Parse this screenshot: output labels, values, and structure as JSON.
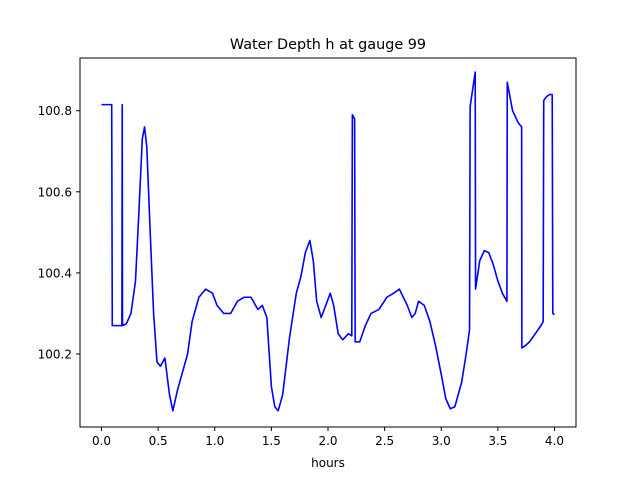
{
  "chart_data": {
    "type": "line",
    "title": "Water Depth h at gauge 99",
    "xlabel": "hours",
    "ylabel": "",
    "xlim": [
      -0.19,
      4.19
    ],
    "ylim": [
      100.02,
      100.93
    ],
    "x_ticks": [
      0.0,
      0.5,
      1.0,
      1.5,
      2.0,
      2.5,
      3.0,
      3.5,
      4.0
    ],
    "x_tick_labels": [
      "0.0",
      "0.5",
      "1.0",
      "1.5",
      "2.0",
      "2.5",
      "3.0",
      "3.5",
      "4.0"
    ],
    "y_ticks": [
      100.2,
      100.4,
      100.6,
      100.8
    ],
    "y_tick_labels": [
      "100.2",
      "100.4",
      "100.6",
      "100.8"
    ],
    "grid": false,
    "series": [
      {
        "color": "#0000ff",
        "points": [
          [
            0.0,
            100.815
          ],
          [
            0.09,
            100.815
          ],
          [
            0.095,
            100.27
          ],
          [
            0.18,
            100.27
          ],
          [
            0.183,
            100.815
          ],
          [
            0.185,
            100.27
          ],
          [
            0.22,
            100.275
          ],
          [
            0.26,
            100.3
          ],
          [
            0.3,
            100.38
          ],
          [
            0.33,
            100.55
          ],
          [
            0.36,
            100.73
          ],
          [
            0.38,
            100.76
          ],
          [
            0.4,
            100.71
          ],
          [
            0.43,
            100.5
          ],
          [
            0.46,
            100.3
          ],
          [
            0.49,
            100.18
          ],
          [
            0.52,
            100.17
          ],
          [
            0.56,
            100.19
          ],
          [
            0.6,
            100.1
          ],
          [
            0.63,
            100.06
          ],
          [
            0.67,
            100.11
          ],
          [
            0.72,
            100.16
          ],
          [
            0.76,
            100.2
          ],
          [
            0.8,
            100.28
          ],
          [
            0.86,
            100.34
          ],
          [
            0.92,
            100.36
          ],
          [
            0.98,
            100.35
          ],
          [
            1.02,
            100.32
          ],
          [
            1.08,
            100.3
          ],
          [
            1.14,
            100.3
          ],
          [
            1.2,
            100.33
          ],
          [
            1.26,
            100.34
          ],
          [
            1.32,
            100.34
          ],
          [
            1.38,
            100.31
          ],
          [
            1.42,
            100.32
          ],
          [
            1.46,
            100.29
          ],
          [
            1.5,
            100.12
          ],
          [
            1.53,
            100.07
          ],
          [
            1.56,
            100.06
          ],
          [
            1.6,
            100.1
          ],
          [
            1.66,
            100.24
          ],
          [
            1.72,
            100.35
          ],
          [
            1.76,
            100.39
          ],
          [
            1.8,
            100.45
          ],
          [
            1.84,
            100.48
          ],
          [
            1.87,
            100.43
          ],
          [
            1.9,
            100.33
          ],
          [
            1.94,
            100.29
          ],
          [
            1.98,
            100.32
          ],
          [
            2.02,
            100.35
          ],
          [
            2.05,
            100.32
          ],
          [
            2.09,
            100.25
          ],
          [
            2.13,
            100.235
          ],
          [
            2.18,
            100.25
          ],
          [
            2.21,
            100.245
          ],
          [
            2.215,
            100.79
          ],
          [
            2.235,
            100.78
          ],
          [
            2.24,
            100.23
          ],
          [
            2.28,
            100.23
          ],
          [
            2.33,
            100.27
          ],
          [
            2.38,
            100.3
          ],
          [
            2.45,
            100.31
          ],
          [
            2.52,
            100.34
          ],
          [
            2.58,
            100.35
          ],
          [
            2.63,
            100.36
          ],
          [
            2.7,
            100.32
          ],
          [
            2.74,
            100.29
          ],
          [
            2.77,
            100.3
          ],
          [
            2.8,
            100.33
          ],
          [
            2.85,
            100.32
          ],
          [
            2.9,
            100.28
          ],
          [
            2.95,
            100.22
          ],
          [
            3.0,
            100.15
          ],
          [
            3.04,
            100.09
          ],
          [
            3.08,
            100.065
          ],
          [
            3.12,
            100.07
          ],
          [
            3.18,
            100.13
          ],
          [
            3.22,
            100.2
          ],
          [
            3.25,
            100.26
          ],
          [
            3.255,
            100.81
          ],
          [
            3.3,
            100.895
          ],
          [
            3.303,
            100.36
          ],
          [
            3.34,
            100.43
          ],
          [
            3.38,
            100.455
          ],
          [
            3.42,
            100.45
          ],
          [
            3.46,
            100.42
          ],
          [
            3.5,
            100.38
          ],
          [
            3.54,
            100.35
          ],
          [
            3.58,
            100.33
          ],
          [
            3.583,
            100.87
          ],
          [
            3.63,
            100.8
          ],
          [
            3.68,
            100.77
          ],
          [
            3.71,
            100.76
          ],
          [
            3.712,
            100.215
          ],
          [
            3.74,
            100.22
          ],
          [
            3.78,
            100.23
          ],
          [
            3.83,
            100.25
          ],
          [
            3.88,
            100.27
          ],
          [
            3.9,
            100.28
          ],
          [
            3.905,
            100.825
          ],
          [
            3.93,
            100.835
          ],
          [
            3.96,
            100.84
          ],
          [
            3.98,
            100.84
          ],
          [
            3.985,
            100.3
          ],
          [
            4.0,
            100.297
          ]
        ]
      }
    ]
  }
}
